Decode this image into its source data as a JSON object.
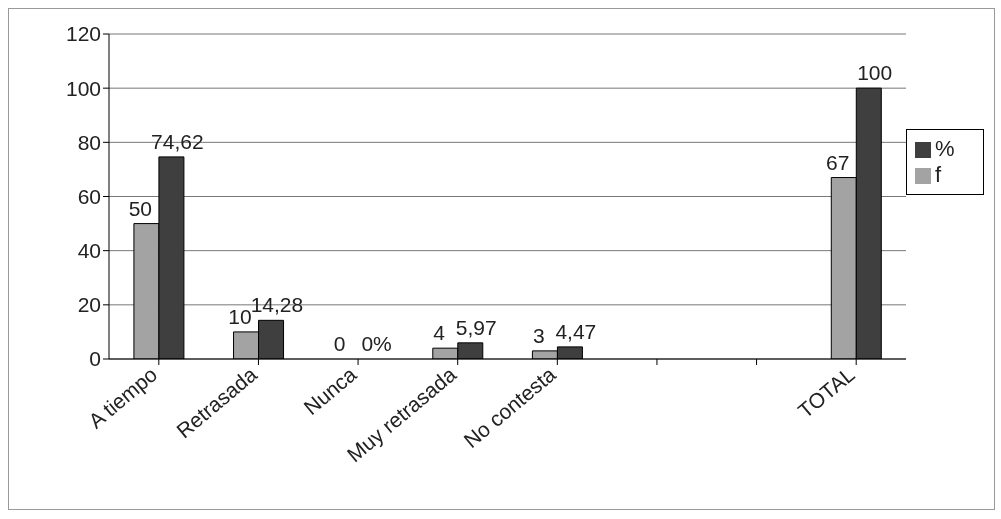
{
  "chart_data": {
    "type": "bar",
    "categories": [
      "A tiempo",
      "Retrasada",
      "Nunca",
      "Muy retrasada",
      "No contesta",
      null,
      null,
      "TOTAL"
    ],
    "series": [
      {
        "name": "f",
        "color": "#a3a3a3",
        "values": [
          50,
          10,
          0,
          4,
          3,
          null,
          null,
          67
        ],
        "value_labels": [
          "50",
          "10",
          "0",
          "4",
          "3",
          null,
          null,
          "67"
        ]
      },
      {
        "name": "%",
        "color": "#3f3f3f",
        "values": [
          74.62,
          14.28,
          0,
          5.97,
          4.47,
          null,
          null,
          100
        ],
        "value_labels": [
          "74,62",
          "14,28",
          "0%",
          "5,97",
          "4,47",
          null,
          null,
          "100"
        ]
      }
    ],
    "ylim": [
      0,
      120
    ],
    "yticks": [
      0,
      20,
      40,
      60,
      80,
      100,
      120
    ],
    "grid": "y",
    "legend": "right"
  }
}
